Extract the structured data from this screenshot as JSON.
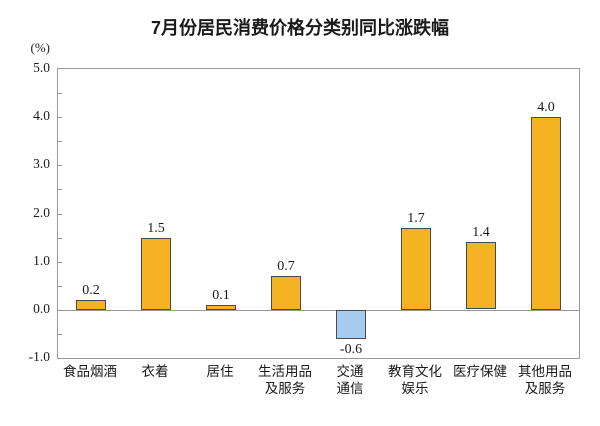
{
  "title": "7月份居民消费价格分类别同比涨跌幅",
  "unit_label": "(%)",
  "chart_data": {
    "type": "bar",
    "title": "7月份居民消费价格分类别同比涨跌幅",
    "xlabel": "",
    "ylabel": "(%)",
    "categories": [
      "食品烟酒",
      "衣着",
      "居住",
      "生活用品\n及服务",
      "交通\n通信",
      "教育文化\n娱乐",
      "医疗保健",
      "其他用品\n及服务"
    ],
    "values": [
      0.2,
      1.5,
      0.1,
      0.7,
      -0.6,
      1.7,
      1.4,
      4.0
    ],
    "value_labels": [
      "0.2",
      "1.5",
      "0.1",
      "0.7",
      "-0.6",
      "1.7",
      "1.4",
      "4.0"
    ],
    "ylim": [
      -1.0,
      5.0
    ],
    "ytick_labels": [
      "5.0",
      "4.0",
      "3.0",
      "2.0",
      "1.0",
      "0.0",
      "-1.0"
    ],
    "ytick_values": [
      5.0,
      4.0,
      3.0,
      2.0,
      1.0,
      0.0,
      -1.0
    ],
    "minor_tick_step": 0.5,
    "grid": false,
    "legend": null,
    "colors": {
      "positive_bar": "#F5B223",
      "negative_bar": "#A7CBEE",
      "bar_border": "#4a4a4a",
      "axis": "#999999",
      "text": "#1a1a1a"
    }
  }
}
